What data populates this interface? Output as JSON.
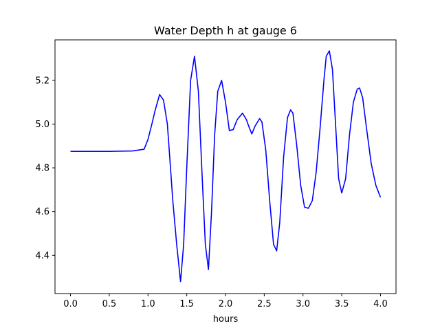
{
  "chart_data": {
    "type": "line",
    "title": "Water Depth h at gauge 6",
    "xlabel": "hours",
    "ylabel": "",
    "xlim": [
      -0.2,
      4.2
    ],
    "ylim": [
      4.225,
      5.385
    ],
    "xticks": [
      0.0,
      0.5,
      1.0,
      1.5,
      2.0,
      2.5,
      3.0,
      3.5,
      4.0
    ],
    "xtick_labels": [
      "0.0",
      "0.5",
      "1.0",
      "1.5",
      "2.0",
      "2.5",
      "3.0",
      "3.5",
      "4.0"
    ],
    "yticks": [
      4.4,
      4.6,
      4.8,
      5.0,
      5.2
    ],
    "ytick_labels": [
      "4.4",
      "4.6",
      "4.8",
      "5.0",
      "5.2"
    ],
    "grid": false,
    "series": [
      {
        "color": "#0000ff",
        "x": [
          0.0,
          0.5,
          0.6,
          0.8,
          0.95,
          1.0,
          1.05,
          1.09,
          1.15,
          1.2,
          1.25,
          1.28,
          1.32,
          1.37,
          1.42,
          1.46,
          1.5,
          1.55,
          1.6,
          1.65,
          1.7,
          1.74,
          1.78,
          1.82,
          1.86,
          1.9,
          1.95,
          2.0,
          2.05,
          2.1,
          2.15,
          2.22,
          2.27,
          2.3,
          2.34,
          2.38,
          2.44,
          2.47,
          2.52,
          2.57,
          2.62,
          2.66,
          2.7,
          2.75,
          2.8,
          2.84,
          2.87,
          2.92,
          2.97,
          3.02,
          3.07,
          3.12,
          3.17,
          3.22,
          3.27,
          3.3,
          3.34,
          3.38,
          3.42,
          3.46,
          3.5,
          3.55,
          3.6,
          3.65,
          3.7,
          3.73,
          3.77,
          3.82,
          3.88,
          3.94,
          4.0
        ],
        "y": [
          4.875,
          4.875,
          4.876,
          4.877,
          4.885,
          4.93,
          5.0,
          5.06,
          5.135,
          5.11,
          5.0,
          4.85,
          4.65,
          4.45,
          4.28,
          4.45,
          4.8,
          5.2,
          5.31,
          5.15,
          4.75,
          4.45,
          4.335,
          4.6,
          4.95,
          5.15,
          5.2,
          5.1,
          4.97,
          4.975,
          5.02,
          5.05,
          5.02,
          4.99,
          4.955,
          4.99,
          5.025,
          5.01,
          4.88,
          4.65,
          4.45,
          4.42,
          4.55,
          4.85,
          5.03,
          5.065,
          5.05,
          4.9,
          4.72,
          4.62,
          4.615,
          4.65,
          4.78,
          4.98,
          5.2,
          5.31,
          5.335,
          5.25,
          5.0,
          4.75,
          4.685,
          4.75,
          4.95,
          5.1,
          5.16,
          5.165,
          5.12,
          4.98,
          4.82,
          4.72,
          4.665
        ]
      }
    ]
  }
}
